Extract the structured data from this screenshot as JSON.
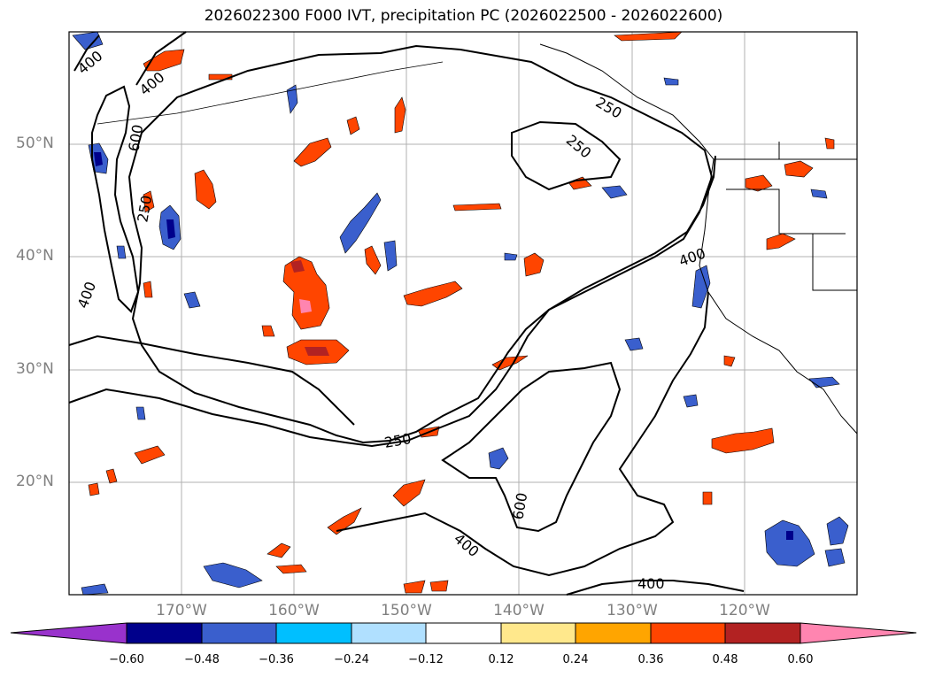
{
  "title": "2026022300 F000 IVT, precipitation PC (2026022500 - 2026022600)",
  "latitude_labels": [
    "50°N",
    "40°N",
    "30°N",
    "20°N"
  ],
  "longitude_labels": [
    "170°W",
    "160°W",
    "150°W",
    "140°W",
    "130°W",
    "120°W"
  ],
  "ivt_contour_labels": [
    "400",
    "400",
    "600",
    "250",
    "400",
    "250",
    "250",
    "400",
    "250",
    "600",
    "400",
    "400"
  ],
  "colorbar": {
    "ticks": [
      "−0.60",
      "−0.48",
      "−0.36",
      "−0.24",
      "−0.12",
      "0.12",
      "0.24",
      "0.36",
      "0.48",
      "0.60"
    ],
    "colors": [
      "#9932cc",
      "#00008b",
      "#3a5fcd",
      "#00bfff",
      "#b0e0ff",
      "#ffffff",
      "#ffe88c",
      "#ffa500",
      "#ff4500",
      "#b22222",
      "#ff85b0"
    ]
  },
  "colors": {
    "negative_strong": "#00008b",
    "negative": "#3a5fcd",
    "negative_light": "#00bfff",
    "positive_light": "#ffa500",
    "positive": "#ff4500",
    "positive_strong": "#b22222",
    "positive_max": "#ff85b0",
    "gridline": "#b0b0b0"
  }
}
